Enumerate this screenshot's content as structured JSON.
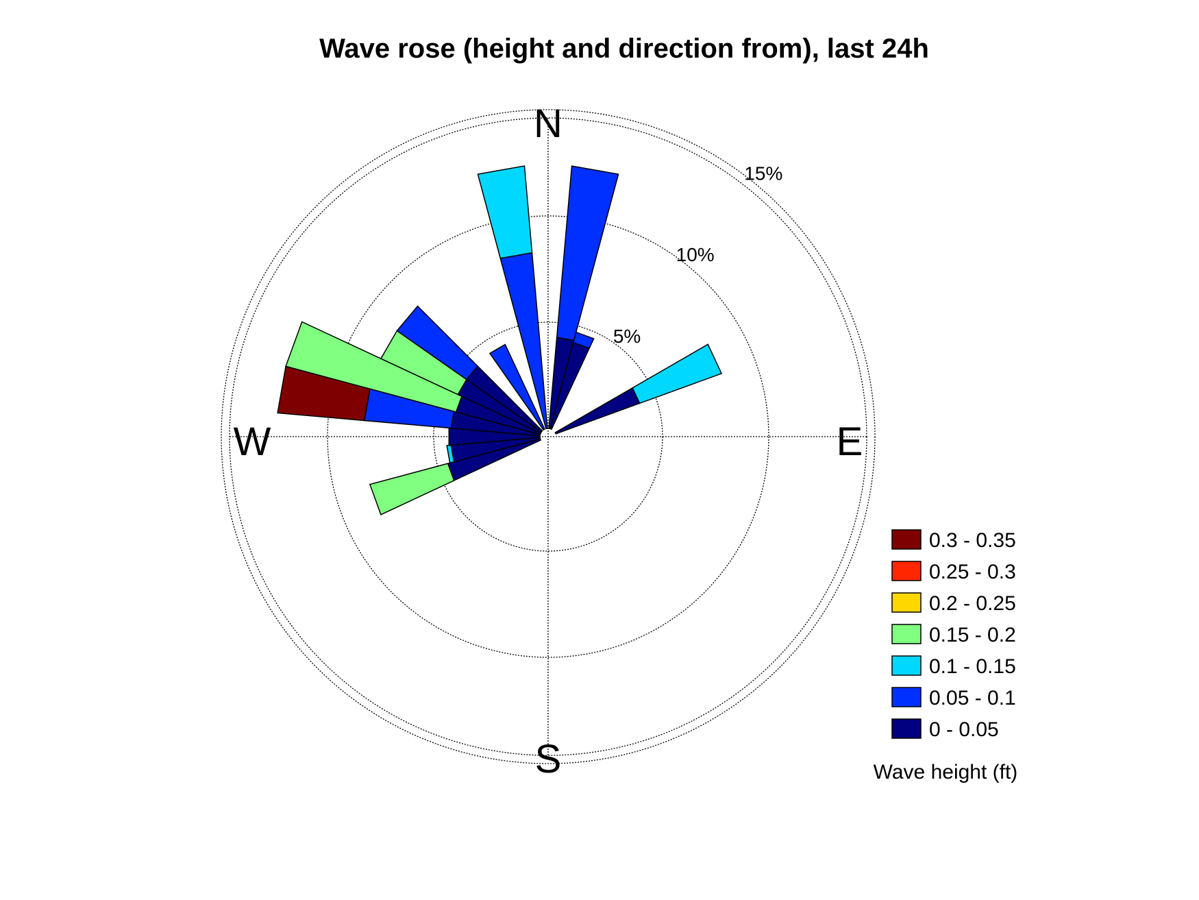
{
  "chart_data": {
    "type": "wind-rose",
    "title": "Wave rose (height and direction from), last 24h",
    "directions": {
      "north": "N",
      "south": "S",
      "east": "E",
      "west": "W"
    },
    "radial_axis": {
      "max_percent": 15,
      "rings": [
        5,
        10,
        15
      ],
      "ring_labels": [
        "5%",
        "10%",
        "15%"
      ]
    },
    "bin_width_deg": 10,
    "legend_title": "Wave height (ft)",
    "bins": [
      {
        "label": "0.3 - 0.35",
        "color": "#7f0000"
      },
      {
        "label": "0.25 - 0.3",
        "color": "#ff2600"
      },
      {
        "label": "0.2 - 0.25",
        "color": "#ffd700"
      },
      {
        "label": "0.15 - 0.2",
        "color": "#80ff80"
      },
      {
        "label": "0.1 - 0.15",
        "color": "#00d8ff"
      },
      {
        "label": "0.05 - 0.1",
        "color": "#0030ff"
      },
      {
        "label": "0 - 0.05",
        "color": "#000080"
      }
    ],
    "sectors": [
      {
        "direction_deg": 10,
        "stacks": [
          {
            "bin": "0 - 0.05",
            "to": 4.3
          },
          {
            "bin": "0.05 - 0.1",
            "to": 12.4
          }
        ]
      },
      {
        "direction_deg": 20,
        "stacks": [
          {
            "bin": "0 - 0.05",
            "to": 4.2
          },
          {
            "bin": "0.05 - 0.1",
            "to": 4.7
          }
        ]
      },
      {
        "direction_deg": 65,
        "stacks": [
          {
            "bin": "0 - 0.05",
            "to": 4.2
          },
          {
            "bin": "0.1 - 0.15",
            "to": 8.3
          }
        ]
      },
      {
        "direction_deg": 250,
        "stacks": [
          {
            "bin": "0 - 0.05",
            "to": 4.5
          },
          {
            "bin": "0.15 - 0.2",
            "to": 8.3
          }
        ]
      },
      {
        "direction_deg": 260,
        "stacks": [
          {
            "bin": "0 - 0.05",
            "to": 4.2
          },
          {
            "bin": "0.1 - 0.15",
            "to": 4.4
          }
        ]
      },
      {
        "direction_deg": 270,
        "stacks": [
          {
            "bin": "0 - 0.05",
            "to": 4.3
          }
        ]
      },
      {
        "direction_deg": 280,
        "stacks": [
          {
            "bin": "0 - 0.05",
            "to": 4.2
          },
          {
            "bin": "0.05 - 0.1",
            "to": 8.3
          },
          {
            "bin": "0.3 - 0.35",
            "to": 12.4
          }
        ]
      },
      {
        "direction_deg": 290,
        "stacks": [
          {
            "bin": "0 - 0.05",
            "to": 4.1
          },
          {
            "bin": "0.15 - 0.2",
            "to": 12.4
          }
        ]
      },
      {
        "direction_deg": 300,
        "stacks": [
          {
            "bin": "0 - 0.05",
            "to": 4.3
          },
          {
            "bin": "0.15 - 0.2",
            "to": 8.3
          }
        ]
      },
      {
        "direction_deg": 310,
        "stacks": [
          {
            "bin": "0 - 0.05",
            "to": 4.3
          },
          {
            "bin": "0.05 - 0.1",
            "to": 8.3
          }
        ]
      },
      {
        "direction_deg": 330,
        "stacks": [
          {
            "bin": "0.05 - 0.1",
            "to": 4.4
          }
        ]
      },
      {
        "direction_deg": 350,
        "stacks": [
          {
            "bin": "0.05 - 0.1",
            "to": 8.3
          },
          {
            "bin": "0.1 - 0.15",
            "to": 12.4
          }
        ]
      }
    ]
  }
}
